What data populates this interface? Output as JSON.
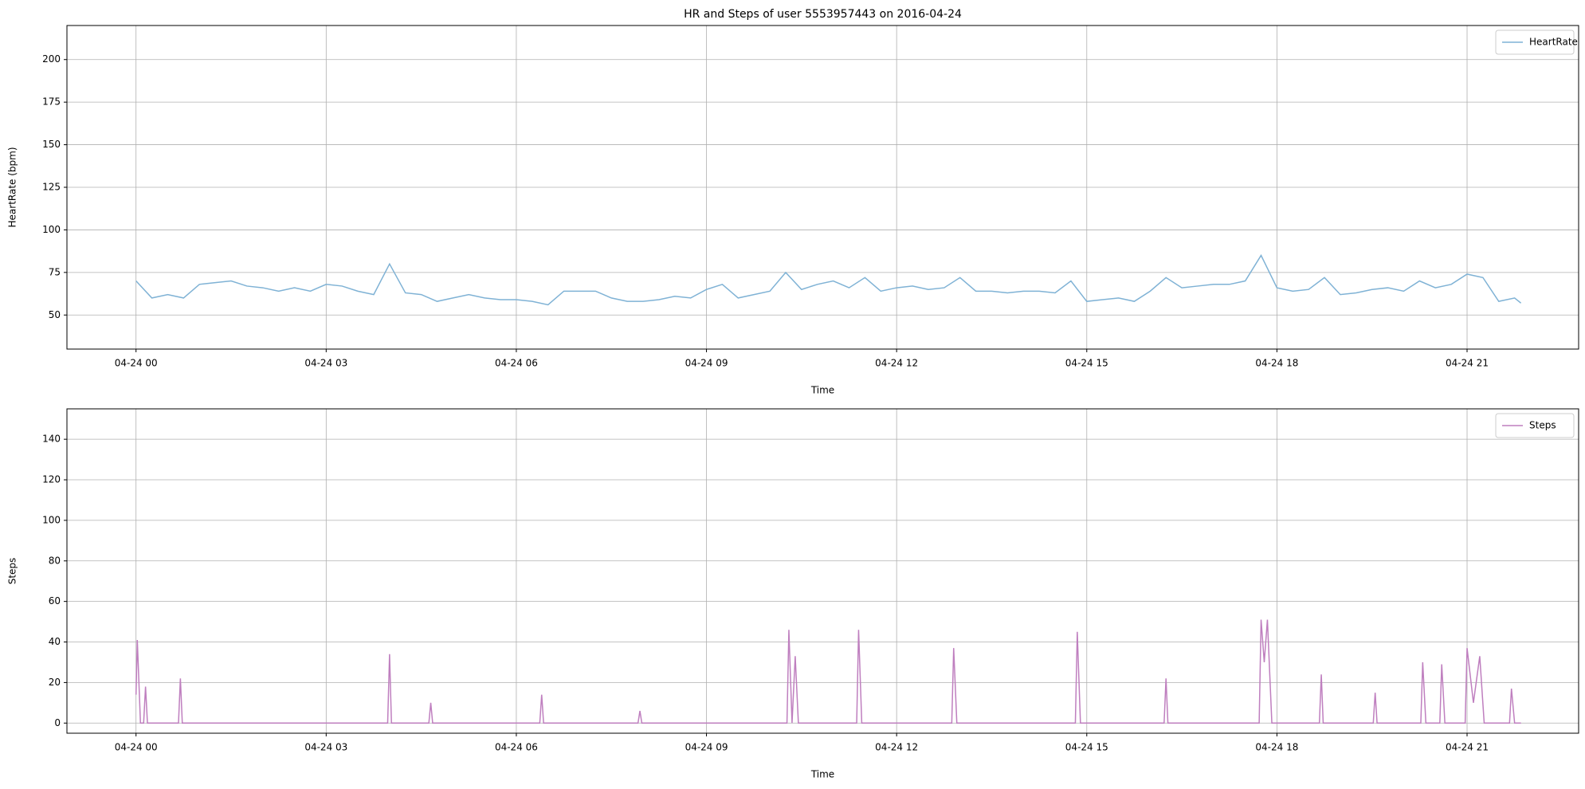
{
  "chart_data": [
    {
      "type": "line",
      "title": "HR and Steps of user 5553957443 on 2016-04-24",
      "xlabel": "Time",
      "ylabel": "HeartRate (bpm)",
      "x": [
        0,
        0.25,
        0.5,
        0.75,
        1,
        1.25,
        1.5,
        1.75,
        2,
        2.25,
        2.5,
        2.75,
        3,
        3.25,
        3.5,
        3.75,
        4,
        4.25,
        4.5,
        4.75,
        5,
        5.25,
        5.5,
        5.75,
        6,
        6.25,
        6.5,
        6.75,
        7,
        7.25,
        7.5,
        7.75,
        8,
        8.25,
        8.5,
        8.75,
        9,
        9.25,
        9.5,
        9.75,
        10,
        10.25,
        10.5,
        10.75,
        11,
        11.25,
        11.5,
        11.75,
        12,
        12.25,
        12.5,
        12.75,
        13,
        13.25,
        13.5,
        13.75,
        14,
        14.25,
        14.5,
        14.75,
        15,
        15.25,
        15.5,
        15.75,
        16,
        16.25,
        16.5,
        16.75,
        17,
        17.25,
        17.5,
        17.75,
        18,
        18.25,
        18.5,
        18.75,
        19,
        19.25,
        19.5,
        19.75,
        20,
        20.25,
        20.5,
        20.75,
        21,
        21.25,
        21.5,
        21.75,
        21.85
      ],
      "series": [
        {
          "name": "HeartRate",
          "color": "#7fb2d5",
          "values": [
            70,
            60,
            62,
            60,
            68,
            69,
            70,
            67,
            66,
            64,
            66,
            64,
            68,
            67,
            64,
            62,
            80,
            63,
            62,
            58,
            60,
            62,
            60,
            59,
            59,
            58,
            56,
            64,
            64,
            64,
            60,
            58,
            58,
            59,
            61,
            60,
            65,
            68,
            60,
            62,
            64,
            75,
            65,
            68,
            70,
            66,
            72,
            64,
            66,
            67,
            65,
            66,
            72,
            64,
            64,
            63,
            64,
            64,
            63,
            70,
            58,
            59,
            60,
            58,
            64,
            72,
            66,
            67,
            68,
            68,
            70,
            85,
            66,
            64,
            65,
            72,
            62,
            63,
            65,
            66,
            64,
            70,
            66,
            68,
            74,
            72,
            58,
            60,
            57
          ]
        }
      ],
      "xlim": [
        -1.09,
        22.76
      ],
      "ylim": [
        30,
        220
      ],
      "yticks": [
        50,
        75,
        100,
        125,
        150,
        175,
        200
      ],
      "xticks": [
        {
          "value": 0,
          "label": "04-24 00"
        },
        {
          "value": 3,
          "label": "04-24 03"
        },
        {
          "value": 6,
          "label": "04-24 06"
        },
        {
          "value": 9,
          "label": "04-24 09"
        },
        {
          "value": 12,
          "label": "04-24 12"
        },
        {
          "value": 15,
          "label": "04-24 15"
        },
        {
          "value": 18,
          "label": "04-24 18"
        },
        {
          "value": 21,
          "label": "04-24 21"
        }
      ],
      "grid": true,
      "legend": "upper right"
    },
    {
      "type": "line",
      "xlabel": "Time",
      "ylabel": "Steps",
      "x": [
        0,
        0.02,
        0.07,
        0.12,
        0.15,
        0.18,
        0.67,
        0.7,
        0.73,
        3.97,
        4.0,
        4.03,
        4.62,
        4.65,
        4.68,
        6.37,
        6.4,
        6.43,
        7.92,
        7.95,
        7.98,
        10.27,
        10.3,
        10.35,
        10.4,
        10.45,
        11.37,
        11.4,
        11.45,
        12.87,
        12.9,
        12.95,
        14.82,
        14.85,
        14.9,
        16.22,
        16.25,
        16.28,
        17.72,
        17.75,
        17.8,
        17.85,
        17.92,
        18.67,
        18.7,
        18.73,
        19.52,
        19.55,
        19.58,
        20.27,
        20.3,
        20.35,
        20.57,
        20.6,
        20.65,
        20.97,
        21.0,
        21.1,
        21.2,
        21.27,
        21.67,
        21.7,
        21.75,
        21.85
      ],
      "series": [
        {
          "name": "Steps",
          "color": "#bf7fbf",
          "values": [
            14,
            41,
            0,
            0,
            18,
            0,
            0,
            22,
            0,
            0,
            34,
            0,
            0,
            10,
            0,
            0,
            14,
            0,
            0,
            6,
            0,
            0,
            46,
            0,
            33,
            0,
            0,
            46,
            0,
            0,
            37,
            0,
            0,
            45,
            0,
            0,
            22,
            0,
            0,
            51,
            30,
            51,
            0,
            0,
            24,
            0,
            0,
            15,
            0,
            0,
            30,
            0,
            0,
            29,
            0,
            0,
            37,
            10,
            33,
            0,
            0,
            17,
            0,
            0
          ]
        }
      ],
      "xlim": [
        -1.09,
        22.76
      ],
      "ylim": [
        -5,
        155
      ],
      "yticks": [
        0,
        20,
        40,
        60,
        80,
        100,
        120,
        140
      ],
      "xticks": [
        {
          "value": 0,
          "label": "04-24 00"
        },
        {
          "value": 3,
          "label": "04-24 03"
        },
        {
          "value": 6,
          "label": "04-24 06"
        },
        {
          "value": 9,
          "label": "04-24 09"
        },
        {
          "value": 12,
          "label": "04-24 12"
        },
        {
          "value": 15,
          "label": "04-24 15"
        },
        {
          "value": 18,
          "label": "04-24 18"
        },
        {
          "value": 21,
          "label": "04-24 21"
        }
      ],
      "grid": true,
      "legend": "upper right"
    }
  ]
}
